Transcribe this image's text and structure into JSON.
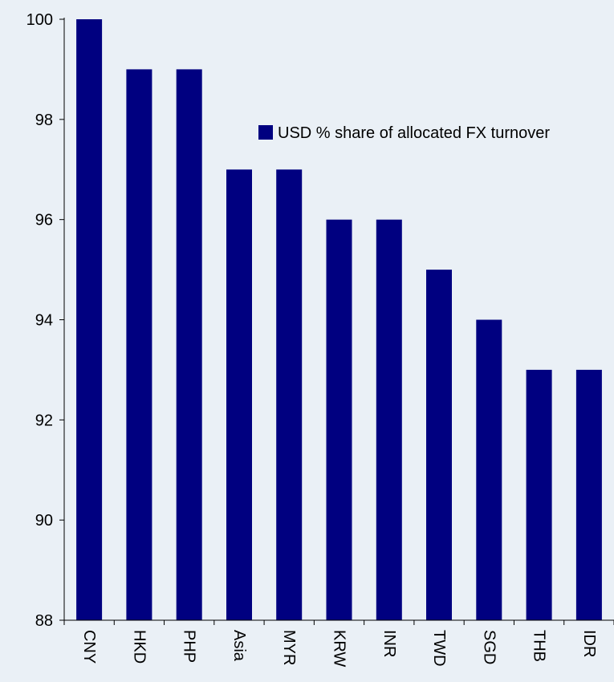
{
  "chart_data": {
    "type": "bar",
    "categories": [
      "CNY",
      "HKD",
      "PHP",
      "Asia",
      "MYR",
      "KRW",
      "INR",
      "TWD",
      "SGD",
      "THB",
      "IDR"
    ],
    "series": [
      {
        "name": "USD % share of allocated FX turnover",
        "values": [
          100,
          99,
          99,
          97,
          97,
          96,
          96,
          95,
          94,
          93,
          93
        ]
      }
    ],
    "ylim": [
      88,
      100
    ],
    "yticks": [
      88,
      90,
      92,
      94,
      96,
      98,
      100
    ],
    "legend_position": "top-right",
    "grid": false,
    "colors": {
      "bar": "#000080",
      "background": "#eaf0f6",
      "axis": "#000000"
    }
  }
}
